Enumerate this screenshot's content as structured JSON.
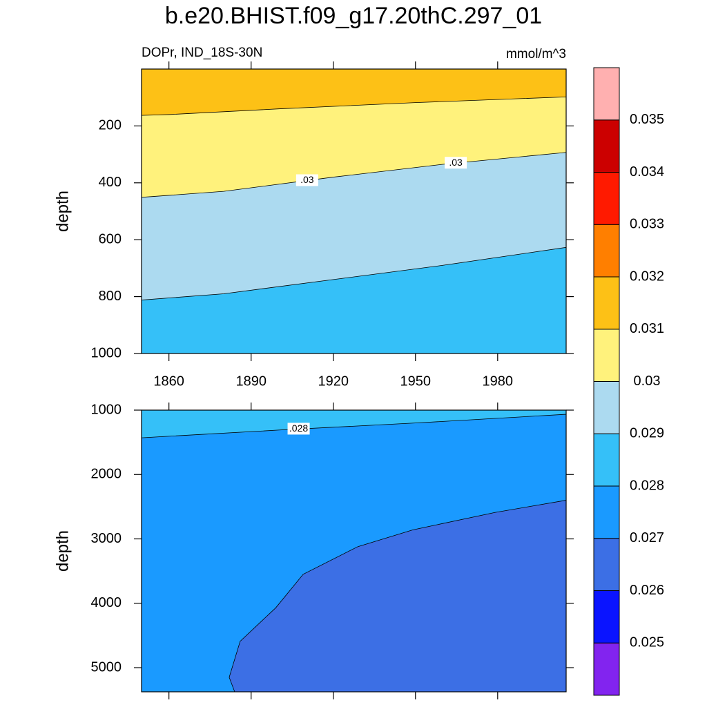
{
  "title": "b.e20.BHIST.f09_g17.20thC.297_01",
  "subtitle_left": "DOPr, IND_18S-30N",
  "subtitle_right": "mmol/m^3",
  "colorbar": {
    "levels": [
      0.025,
      0.026,
      0.027,
      0.028,
      0.029,
      0.03,
      0.031,
      0.032,
      0.033,
      0.034,
      0.035
    ],
    "colors": [
      "#8224ef",
      "#0a14ff",
      "#3c6fe5",
      "#1a9aff",
      "#35c0f8",
      "#acdaf0",
      "#fff27c",
      "#fdc116",
      "#ff7f00",
      "#ff1a00",
      "#cc0000",
      "#ffb0b0"
    ]
  },
  "chart_data": [
    {
      "type": "contour",
      "ylabel": "depth",
      "xlim": [
        1850,
        2005
      ],
      "ylim": [
        0,
        1000
      ],
      "y_inverted": true,
      "xticks": [
        1860,
        1890,
        1920,
        1950,
        1980
      ],
      "xtick_labels": true,
      "yticks": [
        200,
        400,
        600,
        800,
        1000
      ],
      "contours": [
        {
          "level": 0.031,
          "x": [
            1850,
            1860,
            1900,
            1950,
            2005
          ],
          "y": [
            163,
            160,
            140,
            118,
            98
          ]
        },
        {
          "level": {
            "value": 0.03,
            "label": ".03"
          },
          "x": [
            1850,
            1880,
            1920,
            1960,
            2005
          ],
          "y": [
            451,
            430,
            380,
            335,
            293
          ]
        },
        {
          "level": 0.029,
          "x": [
            1850,
            1880,
            1920,
            1960,
            2005
          ],
          "y": [
            812,
            790,
            740,
            690,
            627
          ]
        }
      ]
    },
    {
      "type": "contour",
      "ylabel": "depth",
      "xlim": [
        1850,
        2005
      ],
      "ylim": [
        1000,
        5375
      ],
      "y_inverted": true,
      "xticks": [
        1860,
        1890,
        1920,
        1950,
        1980
      ],
      "xtick_labels": false,
      "yticks": [
        1000,
        2000,
        3000,
        4000,
        5000
      ],
      "contours": [
        {
          "level": {
            "value": 0.028,
            "label": ".028"
          },
          "x": [
            1850,
            1900,
            1950,
            2005
          ],
          "y": [
            1430,
            1310,
            1200,
            1065
          ]
        },
        {
          "level": 0.027,
          "x": [
            1884,
            1882,
            1886,
            1899,
            1909,
            1929,
            1949,
            1979,
            2005
          ],
          "y": [
            5375,
            5150,
            4590,
            4070,
            3550,
            3120,
            2860,
            2590,
            2400
          ]
        }
      ]
    }
  ]
}
